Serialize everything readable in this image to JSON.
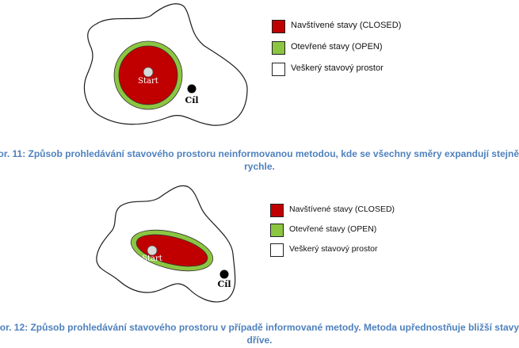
{
  "colors": {
    "closed": "#c00000",
    "open": "#8cc641",
    "space": "#ffffff",
    "caption": "#4f81bd"
  },
  "figure1": {
    "start_label": "Start",
    "goal_label": "Cíl",
    "legend": [
      {
        "label": "Navštívené stavy (CLOSED)",
        "color": "#c00000"
      },
      {
        "label": "Otevřené stavy (OPEN)",
        "color": "#8cc641"
      },
      {
        "label": "Veškerý stavový prostor",
        "color": "#ffffff"
      }
    ],
    "caption_line1": "or. 11: Způsob prohledávání stavového prostoru neinformovanou metodou, kde se všechny směry expandují stejně",
    "caption_line2": "rychle."
  },
  "figure2": {
    "start_label": "Start",
    "goal_label": "Cíl",
    "legend": [
      {
        "label": "Navštívené stavy (CLOSED)",
        "color": "#c00000"
      },
      {
        "label": "Otevřené stavy (OPEN)",
        "color": "#8cc641"
      },
      {
        "label": "Veškerý stavový prostor",
        "color": "#ffffff"
      }
    ],
    "caption_line1": "or. 12: Způsob prohledávání stavového prostoru v případě informované metody. Metoda upřednostňuje bližší stavy",
    "caption_line2": "dříve."
  }
}
